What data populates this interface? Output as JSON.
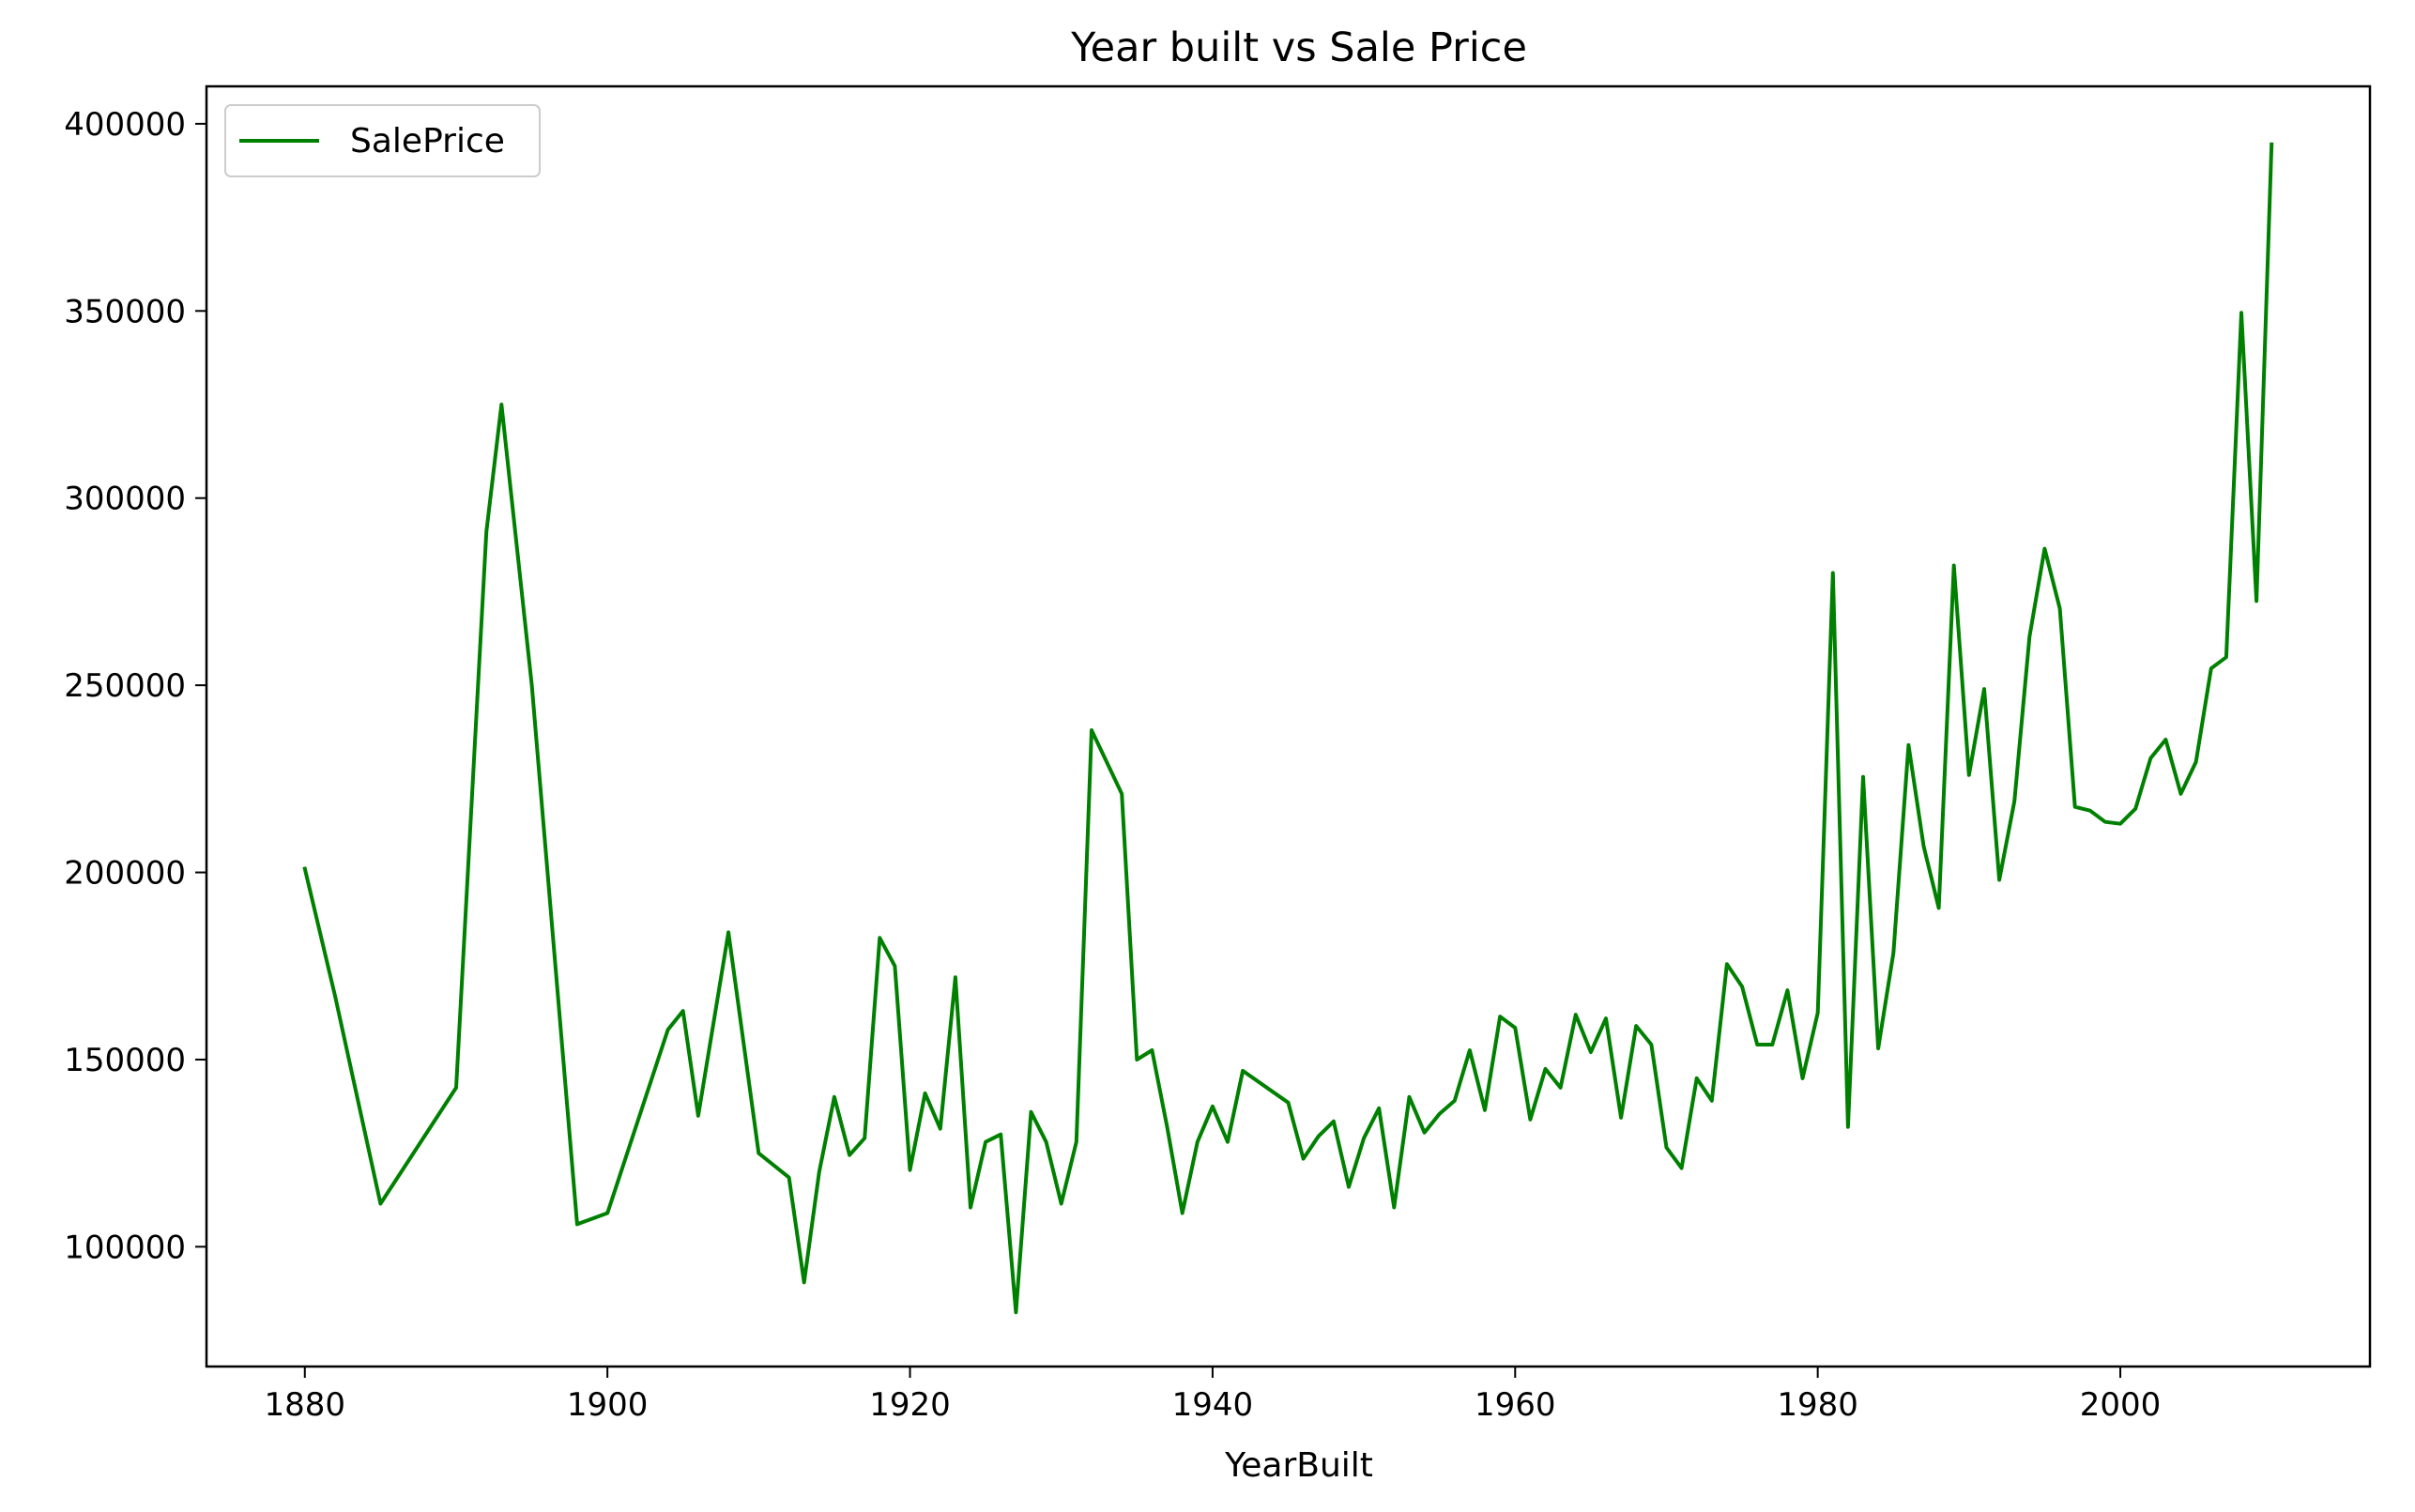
{
  "chart_data": {
    "type": "line",
    "title": "Year built vs Sale Price",
    "xlabel": "YearBuilt",
    "ylabel": "",
    "xlim": [
      1873.5,
      2016.5
    ],
    "ylim": [
      68000,
      410000
    ],
    "xticks": [
      1880,
      1900,
      1920,
      1940,
      1960,
      1980,
      2000
    ],
    "yticks": [
      100000,
      150000,
      200000,
      250000,
      300000,
      350000,
      400000
    ],
    "grid": false,
    "legend_position": "upper-left",
    "series": [
      {
        "name": "SalePrice",
        "color": "#008000",
        "x": [
          1880,
          1882,
          1885,
          1890,
          1892,
          1893,
          1895,
          1898,
          1900,
          1904,
          1905,
          1906,
          1908,
          1910,
          1912,
          1913,
          1914,
          1915,
          1916,
          1917,
          1918,
          1919,
          1920,
          1921,
          1922,
          1923,
          1924,
          1925,
          1926,
          1927,
          1928,
          1929,
          1930,
          1931,
          1932,
          1934,
          1935,
          1936,
          1937,
          1938,
          1939,
          1940,
          1941,
          1942,
          1945,
          1946,
          1947,
          1948,
          1949,
          1950,
          1951,
          1952,
          1953,
          1954,
          1955,
          1956,
          1957,
          1958,
          1959,
          1960,
          1961,
          1962,
          1963,
          1964,
          1965,
          1966,
          1967,
          1968,
          1969,
          1970,
          1971,
          1972,
          1973,
          1974,
          1975,
          1976,
          1977,
          1978,
          1979,
          1980,
          1981,
          1982,
          1983,
          1984,
          1985,
          1986,
          1987,
          1988,
          1989,
          1990,
          1991,
          1992,
          1993,
          1994,
          1995,
          1996,
          1997,
          1998,
          1999,
          2000,
          2001,
          2002,
          2003,
          2004,
          2005,
          2006,
          2007,
          2008,
          2009,
          2010
        ],
        "y": [
          201000,
          167000,
          111500,
          142500,
          291000,
          325000,
          250000,
          106000,
          109000,
          158000,
          163000,
          135000,
          184000,
          125000,
          118500,
          90500,
          120000,
          140000,
          124500,
          129000,
          182500,
          175000,
          120500,
          141000,
          131500,
          172000,
          110500,
          128000,
          130000,
          82500,
          136000,
          128000,
          111500,
          128000,
          238000,
          221000,
          150000,
          152500,
          132000,
          109000,
          128000,
          137500,
          128000,
          147000,
          138500,
          123500,
          129500,
          133500,
          116000,
          129000,
          137000,
          110500,
          140000,
          130500,
          135500,
          139000,
          152500,
          136500,
          161500,
          158500,
          134000,
          147500,
          142500,
          162000,
          152000,
          161000,
          134500,
          159000,
          154000,
          126500,
          121000,
          145000,
          139000,
          175500,
          169500,
          154000,
          154000,
          168500,
          145000,
          162500,
          280000,
          132000,
          225500,
          153000,
          178500,
          234000,
          207000,
          190500,
          282000,
          226000,
          249000,
          198000,
          219000,
          263000,
          286500,
          270500,
          217500,
          216500,
          213500,
          213000,
          217000,
          230500,
          235500,
          221000,
          229500,
          254500,
          257500,
          349500,
          272500,
          394500
        ]
      }
    ]
  }
}
